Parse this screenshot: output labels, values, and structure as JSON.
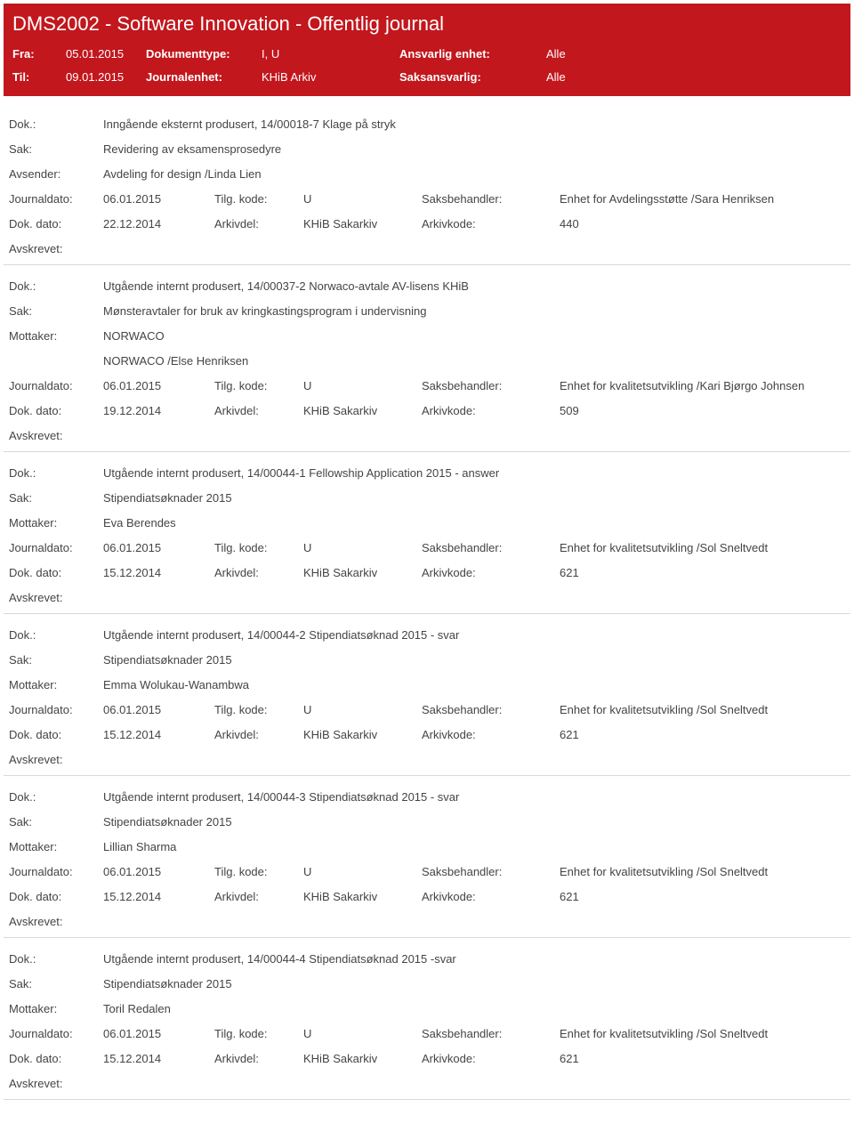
{
  "header": {
    "title": "DMS2002 - Software Innovation - Offentlig journal",
    "fra_lbl": "Fra:",
    "fra": "05.01.2015",
    "til_lbl": "Til:",
    "til": "09.01.2015",
    "doktype_lbl": "Dokumenttype:",
    "doktype": "I, U",
    "journ_lbl": "Journalenhet:",
    "journ": "KHiB Arkiv",
    "ansv_lbl": "Ansvarlig enhet:",
    "ansv": "Alle",
    "saks_lbl": "Saksansvarlig:",
    "saks": "Alle"
  },
  "labels": {
    "dok": "Dok.:",
    "sak": "Sak:",
    "avsender": "Avsender:",
    "mottaker": "Mottaker:",
    "journaldato": "Journaldato:",
    "dokdato": "Dok. dato:",
    "tilgkode": "Tilg. kode:",
    "arkivdel": "Arkivdel:",
    "saksbeh": "Saksbehandler:",
    "arkivkode": "Arkivkode:",
    "avskrevet": "Avskrevet:"
  },
  "entries": [
    {
      "dok": "Inngående eksternt produsert, 14/00018-7 Klage på stryk",
      "sak": "Revidering av eksamensprosedyre",
      "party_lbl": "Avsender:",
      "party": "Avdeling for design /Linda Lien",
      "party2": "",
      "jdato": "06.01.2015",
      "tkode": "U",
      "sbeh": "Enhet for Avdelingsstøtte /Sara Henriksen",
      "ddato": "22.12.2014",
      "adel": "KHiB Sakarkiv",
      "akode": "440"
    },
    {
      "dok": "Utgående internt produsert, 14/00037-2 Norwaco-avtale AV-lisens KHiB",
      "sak": "Mønsteravtaler for bruk av kringkastingsprogram i undervisning",
      "party_lbl": "Mottaker:",
      "party": "NORWACO",
      "party2": "NORWACO /Else Henriksen",
      "jdato": "06.01.2015",
      "tkode": "U",
      "sbeh": "Enhet for kvalitetsutvikling /Kari Bjørgo Johnsen",
      "ddato": "19.12.2014",
      "adel": "KHiB Sakarkiv",
      "akode": "509"
    },
    {
      "dok": "Utgående internt produsert, 14/00044-1 Fellowship Application 2015 - answer",
      "sak": "Stipendiatsøknader 2015",
      "party_lbl": "Mottaker:",
      "party": "Eva Berendes",
      "party2": "",
      "jdato": "06.01.2015",
      "tkode": "U",
      "sbeh": "Enhet for kvalitetsutvikling /Sol Sneltvedt",
      "ddato": "15.12.2014",
      "adel": "KHiB Sakarkiv",
      "akode": "621"
    },
    {
      "dok": "Utgående internt produsert, 14/00044-2 Stipendiatsøknad 2015 - svar",
      "sak": "Stipendiatsøknader 2015",
      "party_lbl": "Mottaker:",
      "party": "Emma Wolukau-Wanambwa",
      "party2": "",
      "jdato": "06.01.2015",
      "tkode": "U",
      "sbeh": "Enhet for kvalitetsutvikling /Sol Sneltvedt",
      "ddato": "15.12.2014",
      "adel": "KHiB Sakarkiv",
      "akode": "621"
    },
    {
      "dok": "Utgående internt produsert, 14/00044-3 Stipendiatsøknad 2015 - svar",
      "sak": "Stipendiatsøknader 2015",
      "party_lbl": "Mottaker:",
      "party": "Lillian Sharma",
      "party2": "",
      "jdato": "06.01.2015",
      "tkode": "U",
      "sbeh": "Enhet for kvalitetsutvikling /Sol Sneltvedt",
      "ddato": "15.12.2014",
      "adel": "KHiB Sakarkiv",
      "akode": "621"
    },
    {
      "dok": "Utgående internt produsert, 14/00044-4 Stipendiatsøknad 2015 -svar",
      "sak": "Stipendiatsøknader 2015",
      "party_lbl": "Mottaker:",
      "party": "Toril Redalen",
      "party2": "",
      "jdato": "06.01.2015",
      "tkode": "U",
      "sbeh": "Enhet for kvalitetsutvikling /Sol Sneltvedt",
      "ddato": "15.12.2014",
      "adel": "KHiB Sakarkiv",
      "akode": "621"
    }
  ]
}
